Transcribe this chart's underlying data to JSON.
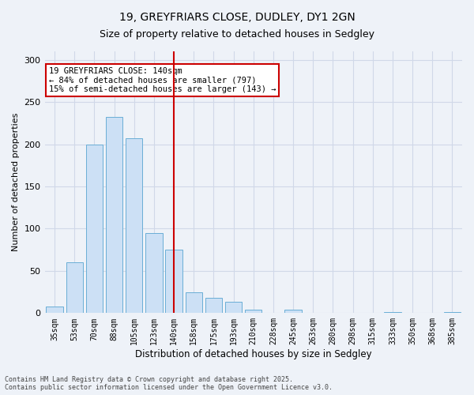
{
  "title1": "19, GREYFRIARS CLOSE, DUDLEY, DY1 2GN",
  "title2": "Size of property relative to detached houses in Sedgley",
  "xlabel": "Distribution of detached houses by size in Sedgley",
  "ylabel": "Number of detached properties",
  "categories": [
    "35sqm",
    "53sqm",
    "70sqm",
    "88sqm",
    "105sqm",
    "123sqm",
    "140sqm",
    "158sqm",
    "175sqm",
    "193sqm",
    "210sqm",
    "228sqm",
    "245sqm",
    "263sqm",
    "280sqm",
    "298sqm",
    "315sqm",
    "333sqm",
    "350sqm",
    "368sqm",
    "385sqm"
  ],
  "values": [
    8,
    60,
    200,
    232,
    207,
    95,
    75,
    25,
    18,
    13,
    4,
    0,
    4,
    0,
    0,
    0,
    0,
    1,
    0,
    0,
    1
  ],
  "bar_color": "#cce0f5",
  "bar_edge_color": "#6aaed6",
  "marker_index": 6,
  "marker_color": "#cc0000",
  "annotation_text": "19 GREYFRIARS CLOSE: 140sqm\n← 84% of detached houses are smaller (797)\n15% of semi-detached houses are larger (143) →",
  "annotation_box_color": "#ffffff",
  "annotation_box_edge_color": "#cc0000",
  "ylim": [
    0,
    310
  ],
  "yticks": [
    0,
    50,
    100,
    150,
    200,
    250,
    300
  ],
  "grid_color": "#d0d8e8",
  "background_color": "#eef2f8",
  "footer1": "Contains HM Land Registry data © Crown copyright and database right 2025.",
  "footer2": "Contains public sector information licensed under the Open Government Licence v3.0."
}
